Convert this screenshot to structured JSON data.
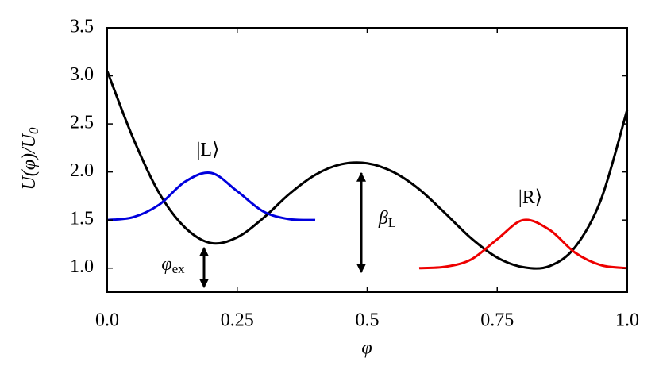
{
  "chart_data": {
    "type": "line",
    "xlabel": "φ",
    "ylabel": {
      "text": "U(φ)/U",
      "sub": "0"
    },
    "xlim": [
      0,
      1
    ],
    "ylim": [
      0.75,
      3.5
    ],
    "xticks": [
      {
        "value": 0,
        "label": "0.0"
      },
      0.25,
      0.5,
      0.75,
      {
        "value": 1,
        "label": "1.0"
      }
    ],
    "yticks": [
      {
        "value": 1,
        "label": "1.0"
      },
      1.5,
      {
        "value": 2,
        "label": "2.0"
      },
      2.5,
      {
        "value": 3,
        "label": "3.0"
      },
      3.5
    ],
    "series": [
      {
        "color": "#000000",
        "x": [
          0,
          0.05,
          0.1,
          0.15,
          0.2,
          0.25,
          0.3,
          0.35,
          0.4,
          0.45,
          0.5,
          0.55,
          0.6,
          0.65,
          0.7,
          0.75,
          0.8,
          0.85,
          0.9,
          0.95,
          1.0
        ],
        "values": [
          3.05,
          2.35,
          1.78,
          1.42,
          1.26,
          1.32,
          1.52,
          1.77,
          1.97,
          2.08,
          2.09,
          2.0,
          1.82,
          1.57,
          1.31,
          1.11,
          1.01,
          1.02,
          1.22,
          1.72,
          2.65
        ]
      },
      {
        "color": "#0000dd",
        "x": [
          0,
          0.05,
          0.1,
          0.15,
          0.2,
          0.25,
          0.3,
          0.35,
          0.4
        ],
        "values": [
          1.5,
          1.53,
          1.66,
          1.9,
          1.99,
          1.8,
          1.59,
          1.51,
          1.5
        ]
      },
      {
        "color": "#ee0000",
        "x": [
          0.6,
          0.65,
          0.7,
          0.75,
          0.8,
          0.85,
          0.9,
          0.95,
          1.0
        ],
        "values": [
          1.0,
          1.014,
          1.09,
          1.3,
          1.5,
          1.4,
          1.16,
          1.03,
          1.0
        ]
      }
    ],
    "annotations": [
      {
        "text": "|L⟩"
      },
      {
        "text": "|R⟩"
      },
      {
        "text": "β",
        "sub": "L"
      },
      {
        "text": "φ",
        "sub": "ex"
      }
    ]
  }
}
